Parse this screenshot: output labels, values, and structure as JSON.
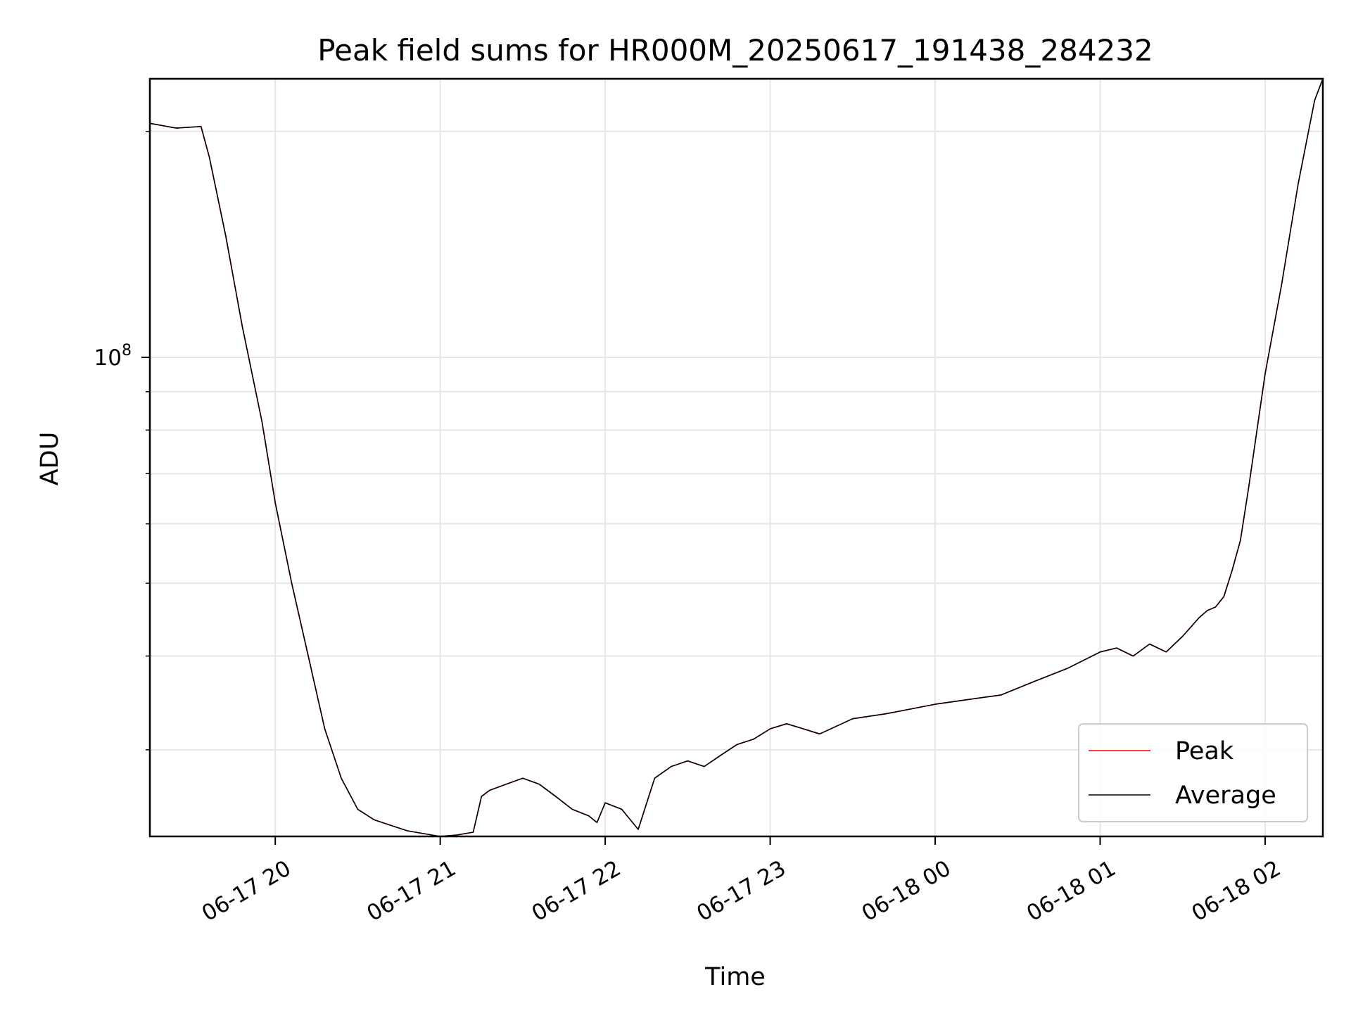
{
  "chart_data": {
    "type": "line",
    "title": "Peak field sums for HR000M_20250617_191438_284232",
    "xlabel": "Time",
    "ylabel": "ADU",
    "x_ticks": [
      "06-17 20",
      "06-17 21",
      "06-17 22",
      "06-17 23",
      "06-18 00",
      "06-18 01",
      "06-18 02"
    ],
    "x_tick_hours": [
      20,
      21,
      22,
      23,
      24,
      25,
      26
    ],
    "xlim_hours": [
      19.24,
      26.35
    ],
    "y_scale": "log",
    "ylim": [
      23000000,
      235000000
    ],
    "y_major_tick": {
      "value": 100000000,
      "base": "10",
      "exponent": "8"
    },
    "y_minor_ticks": [
      30000000,
      40000000,
      50000000,
      60000000,
      70000000,
      80000000,
      90000000,
      200000000
    ],
    "grid": true,
    "legend": {
      "position": "lower-right"
    },
    "series": [
      {
        "name": "Peak",
        "color": "#ff0000",
        "x_hours": [
          19.24,
          19.4,
          19.55,
          19.6,
          19.7,
          19.8,
          19.92,
          20.0,
          20.1,
          20.2,
          20.3,
          20.4,
          20.5,
          20.6,
          20.7,
          20.8,
          20.9,
          21.0,
          21.1,
          21.2,
          21.25,
          21.3,
          21.4,
          21.5,
          21.6,
          21.7,
          21.8,
          21.9,
          21.95,
          22.0,
          22.1,
          22.2,
          22.3,
          22.4,
          22.5,
          22.6,
          22.7,
          22.8,
          22.9,
          23.0,
          23.1,
          23.2,
          23.3,
          23.5,
          23.7,
          24.0,
          24.2,
          24.4,
          24.6,
          24.8,
          25.0,
          25.1,
          25.2,
          25.3,
          25.4,
          25.5,
          25.6,
          25.65,
          25.7,
          25.75,
          25.8,
          25.85,
          25.9,
          26.0,
          26.1,
          26.2,
          26.3,
          26.35
        ],
        "y": [
          205000000,
          202000000,
          203000000,
          185000000,
          145000000,
          110000000,
          82000000,
          64000000,
          50000000,
          40000000,
          32000000,
          27500000,
          25000000,
          24200000,
          23800000,
          23400000,
          23200000,
          23000000,
          23100000,
          23300000,
          26000000,
          26500000,
          27000000,
          27500000,
          27000000,
          26000000,
          25000000,
          24500000,
          24000000,
          25500000,
          25000000,
          23500000,
          27500000,
          28500000,
          29000000,
          28500000,
          29500000,
          30500000,
          31000000,
          32000000,
          32500000,
          32000000,
          31500000,
          33000000,
          33500000,
          34500000,
          35000000,
          35500000,
          37000000,
          38500000,
          40500000,
          41000000,
          40000000,
          41500000,
          40500000,
          42500000,
          45000000,
          46000000,
          46500000,
          48000000,
          52000000,
          57000000,
          67000000,
          95000000,
          125000000,
          170000000,
          220000000,
          235000000
        ]
      },
      {
        "name": "Average",
        "color": "#000000",
        "x_hours": [
          19.24,
          19.4,
          19.55,
          19.6,
          19.7,
          19.8,
          19.92,
          20.0,
          20.1,
          20.2,
          20.3,
          20.4,
          20.5,
          20.6,
          20.7,
          20.8,
          20.9,
          21.0,
          21.1,
          21.2,
          21.25,
          21.3,
          21.4,
          21.5,
          21.6,
          21.7,
          21.8,
          21.9,
          21.95,
          22.0,
          22.1,
          22.2,
          22.3,
          22.4,
          22.5,
          22.6,
          22.7,
          22.8,
          22.9,
          23.0,
          23.1,
          23.2,
          23.3,
          23.5,
          23.7,
          24.0,
          24.2,
          24.4,
          24.6,
          24.8,
          25.0,
          25.1,
          25.2,
          25.3,
          25.4,
          25.5,
          25.6,
          25.65,
          25.7,
          25.75,
          25.8,
          25.85,
          25.9,
          26.0,
          26.1,
          26.2,
          26.3,
          26.35
        ],
        "y": [
          205000000,
          202000000,
          203000000,
          185000000,
          145000000,
          110000000,
          82000000,
          64000000,
          50000000,
          40000000,
          32000000,
          27500000,
          25000000,
          24200000,
          23800000,
          23400000,
          23200000,
          23000000,
          23100000,
          23300000,
          26000000,
          26500000,
          27000000,
          27500000,
          27000000,
          26000000,
          25000000,
          24500000,
          24000000,
          25500000,
          25000000,
          23500000,
          27500000,
          28500000,
          29000000,
          28500000,
          29500000,
          30500000,
          31000000,
          32000000,
          32500000,
          32000000,
          31500000,
          33000000,
          33500000,
          34500000,
          35000000,
          35500000,
          37000000,
          38500000,
          40500000,
          41000000,
          40000000,
          41500000,
          40500000,
          42500000,
          45000000,
          46000000,
          46500000,
          48000000,
          52000000,
          57000000,
          67000000,
          95000000,
          125000000,
          170000000,
          220000000,
          235000000
        ]
      }
    ]
  }
}
